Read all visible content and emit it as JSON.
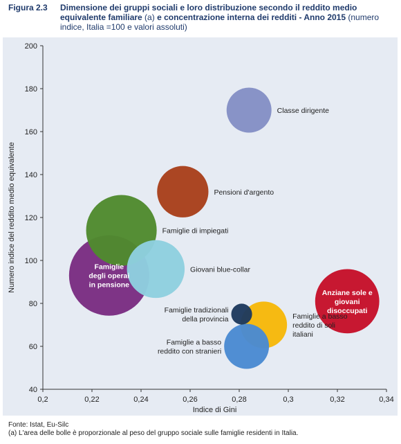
{
  "header": {
    "figure_label": "Figura 2.3",
    "title_bold_1": "Dimensione dei gruppi sociali e loro distribuzione secondo il reddito medio equivalente familiare",
    "title_mid": " (a) ",
    "title_bold_2": "e concentrazione interna dei redditi - Anno 2015",
    "title_rest": " (numero indice, Italia =100 e valori assoluti)"
  },
  "footer": {
    "source": "Fonte: Istat, Eu-Silc",
    "note": "(a) L'area delle bolle è proporzionale al peso del gruppo sociale sulle famiglie residenti in Italia."
  },
  "chart_data": {
    "type": "scatter",
    "subtype": "bubble",
    "xlabel": "Indice di Gini",
    "ylabel": "Numero indice del reddito medio equivalente",
    "xlim": [
      0.2,
      0.34
    ],
    "ylim": [
      40,
      200
    ],
    "x_ticks": [
      0.2,
      0.22,
      0.24,
      0.26,
      0.28,
      0.3,
      0.32,
      0.34
    ],
    "x_tick_labels": [
      "0,2",
      "0,22",
      "0,24",
      "0,26",
      "0,28",
      "0,3",
      "0,32",
      "0,34"
    ],
    "y_ticks": [
      40,
      60,
      80,
      100,
      120,
      140,
      160,
      180,
      200
    ],
    "y_tick_labels": [
      "40",
      "60",
      "80",
      "100",
      "120",
      "140",
      "160",
      "180",
      "200"
    ],
    "grid": false,
    "bubbles": [
      {
        "label": "Classe dirigente",
        "x": 0.284,
        "y": 170,
        "radius_rel": 0.56,
        "color": "#8490c5",
        "label_pos": "right",
        "label_color": "#222222"
      },
      {
        "label": "Pensioni d'argento",
        "x": 0.257,
        "y": 132,
        "radius_rel": 0.64,
        "color": "#a8401c",
        "label_pos": "right",
        "label_color": "#222222"
      },
      {
        "label": "Famiglie di impiegati",
        "x": 0.232,
        "y": 114,
        "radius_rel": 0.88,
        "color": "#4f8a2e",
        "label_pos": "right",
        "label_color": "#222222"
      },
      {
        "label": "Famiglie degli operai in pensione",
        "x": 0.227,
        "y": 93,
        "radius_rel": 1.0,
        "color": "#7a2d82",
        "label_pos": "center",
        "label_color": "#ffffff"
      },
      {
        "label": "Giovani blue-collar",
        "x": 0.246,
        "y": 96,
        "radius_rel": 0.72,
        "color": "#8ecfdf",
        "label_pos": "right",
        "label_color": "#222222"
      },
      {
        "label": "Anziane sole e giovani disoccupati",
        "x": 0.324,
        "y": 81,
        "radius_rel": 0.8,
        "color": "#c5112a",
        "label_pos": "center",
        "label_color": "#ffffff"
      },
      {
        "label": "Famiglie a basso reddito di soli italiani",
        "x": 0.29,
        "y": 70,
        "radius_rel": 0.58,
        "color": "#f6b80a",
        "label_pos": "right",
        "label_color": "#222222"
      },
      {
        "label": "Famiglie a basso reddito con stranieri",
        "x": 0.283,
        "y": 60,
        "radius_rel": 0.56,
        "color": "#4a8ad2",
        "label_pos": "left",
        "label_color": "#222222"
      },
      {
        "label": "Famiglie tradizionali della provincia",
        "x": 0.281,
        "y": 75,
        "radius_rel": 0.26,
        "color": "#1e3a5e",
        "label_pos": "left",
        "label_color": "#222222"
      }
    ]
  }
}
